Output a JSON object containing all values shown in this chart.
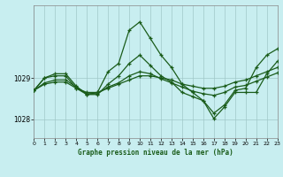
{
  "xlabel": "Graphe pression niveau de la mer (hPa)",
  "background_color": "#c8eef0",
  "grid_color": "#a0c8c8",
  "line_color": "#1a5c1a",
  "xlim": [
    0,
    23
  ],
  "ylim": [
    1027.55,
    1030.75
  ],
  "yticks": [
    1028,
    1029
  ],
  "xticks": [
    0,
    1,
    2,
    3,
    4,
    5,
    6,
    7,
    8,
    9,
    10,
    11,
    12,
    13,
    14,
    15,
    16,
    17,
    18,
    19,
    20,
    21,
    22,
    23
  ],
  "series": [
    [
      1028.7,
      1029.0,
      1029.05,
      1029.05,
      1028.75,
      1028.6,
      1028.65,
      1029.15,
      1029.35,
      1030.15,
      1030.35,
      1029.95,
      1029.55,
      1029.25,
      1028.85,
      1028.65,
      1028.45,
      1028.15,
      1028.35,
      1028.7,
      1028.75,
      1029.25,
      1029.55,
      1029.7
    ],
    [
      1028.7,
      1028.85,
      1028.9,
      1028.9,
      1028.75,
      1028.65,
      1028.65,
      1028.75,
      1028.85,
      1028.95,
      1029.05,
      1029.05,
      1029.0,
      1028.95,
      1028.85,
      1028.8,
      1028.75,
      1028.75,
      1028.8,
      1028.9,
      1028.95,
      1029.05,
      1029.15,
      1029.25
    ],
    [
      1028.7,
      1029.0,
      1029.1,
      1029.1,
      1028.8,
      1028.6,
      1028.6,
      1028.85,
      1029.05,
      1029.35,
      1029.55,
      1029.3,
      1029.05,
      1028.9,
      1028.65,
      1028.55,
      1028.45,
      1028.02,
      1028.3,
      1028.65,
      1028.65,
      1028.65,
      1029.1,
      1029.4
    ],
    [
      1028.7,
      1028.88,
      1028.95,
      1028.95,
      1028.78,
      1028.62,
      1028.62,
      1028.78,
      1028.88,
      1029.05,
      1029.15,
      1029.1,
      1028.98,
      1028.88,
      1028.78,
      1028.68,
      1028.62,
      1028.58,
      1028.65,
      1028.78,
      1028.82,
      1028.92,
      1029.02,
      1029.12
    ]
  ]
}
